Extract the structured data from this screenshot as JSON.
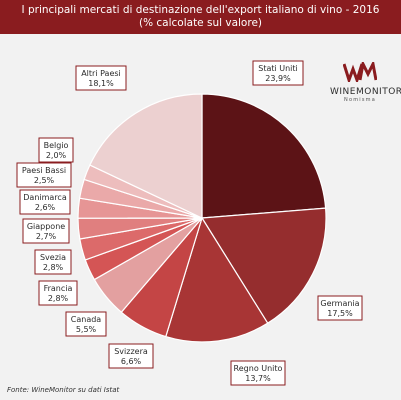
{
  "title": {
    "line1": "I principali mercati di destinazione dell'export italiano di vino - 2016",
    "line2": "(% calcolate sul valore)"
  },
  "logo": {
    "mark": "WM",
    "text": "WINEMONITOR",
    "subtext": "Nomisma"
  },
  "source": "Fonte: WineMonitor su dati Istat",
  "chart_data": {
    "type": "pie",
    "title": "I principali mercati di destinazione dell'export italiano di vino - 2016",
    "subtitle": "(% calcolate sul valore)",
    "slices": [
      {
        "label": "Stati Uniti",
        "value": 23.9,
        "value_label": "23,9%",
        "color": "#5c1316"
      },
      {
        "label": "Germania",
        "value": 17.5,
        "value_label": "17,5%",
        "color": "#952d2e"
      },
      {
        "label": "Regno Unito",
        "value": 13.7,
        "value_label": "13,7%",
        "color": "#a83535"
      },
      {
        "label": "Svizzera",
        "value": 6.6,
        "value_label": "6,6%",
        "color": "#c44545"
      },
      {
        "label": "Canada",
        "value": 5.5,
        "value_label": "5,5%",
        "color": "#e3a0a0"
      },
      {
        "label": "Francia",
        "value": 2.8,
        "value_label": "2,8%",
        "color": "#d45555"
      },
      {
        "label": "Svezia",
        "value": 2.8,
        "value_label": "2,8%",
        "color": "#dc6a6a"
      },
      {
        "label": "Giappone",
        "value": 2.7,
        "value_label": "2,7%",
        "color": "#e07f7f"
      },
      {
        "label": "Danimarca",
        "value": 2.6,
        "value_label": "2,6%",
        "color": "#e69595"
      },
      {
        "label": "Paesi Bassi",
        "value": 2.5,
        "value_label": "2,5%",
        "color": "#eaa9a9"
      },
      {
        "label": "Belgio",
        "value": 2.0,
        "value_label": "2,0%",
        "color": "#edbdbd"
      },
      {
        "label": "Altri Paesi",
        "value": 18.1,
        "value_label": "18,1%",
        "color": "#ecd0d0"
      }
    ]
  }
}
